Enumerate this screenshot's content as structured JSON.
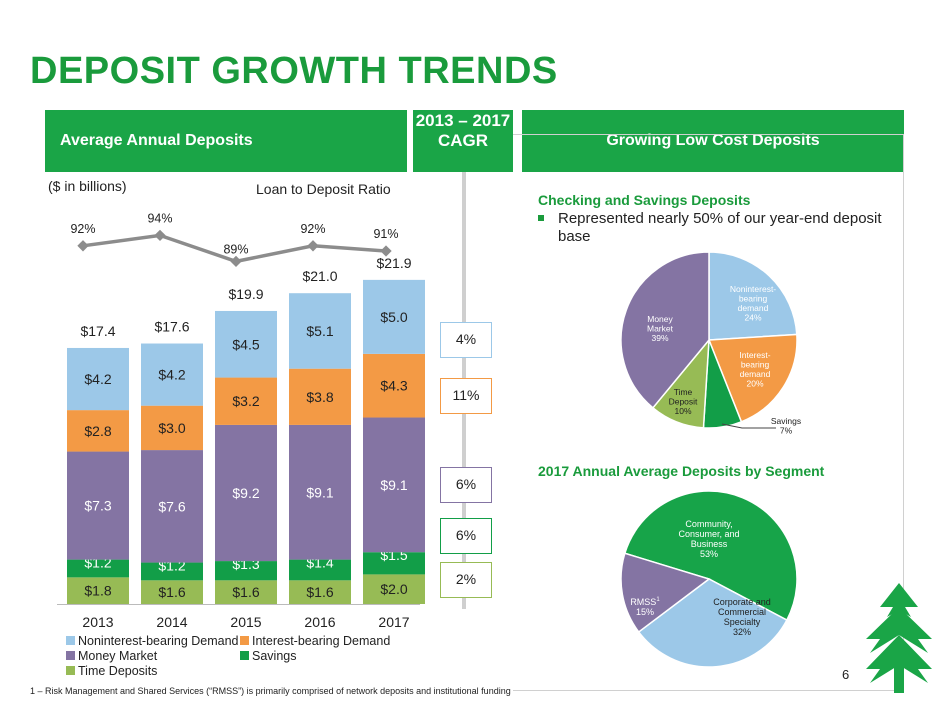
{
  "title": "DEPOSIT GROWTH TRENDS",
  "left_band": "Average Annual Deposits",
  "cagr_band": "2013 – 2017 CAGR",
  "right_band": "Growing Low Cost Deposits",
  "units_label": "($ in billions)",
  "ratio_label": "Loan to Deposit Ratio",
  "cagr_values": [
    "4%",
    "11%",
    "6%",
    "6%",
    "2%"
  ],
  "checking_heading": "Checking and Savings Deposits",
  "checking_bullet": "Represented nearly 50% of our year-end deposit base",
  "segment_heading": "2017 Annual Average Deposits by Segment",
  "footnote": "1 – Risk Management and Shared Services (“RMSS”) is primarily comprised of network deposits and institutional funding",
  "page_number": "6",
  "colors": {
    "brand_green": "#1a9b3c",
    "noninterest": "#9cc8e8",
    "interest": "#f39a45",
    "money_market": "#8474a3",
    "savings": "#129e48",
    "time_deposits": "#97bb55"
  },
  "chart_data": [
    {
      "type": "bar",
      "stacked": true,
      "title": "Average Annual Deposits",
      "ylabel": "($ in billions)",
      "categories": [
        "2013",
        "2014",
        "2015",
        "2016",
        "2017"
      ],
      "series": [
        {
          "name": "Time Deposits",
          "values": [
            "$1.8",
            "$1.6",
            "$1.6",
            "$1.6",
            "$2.0"
          ],
          "numeric": [
            1.8,
            1.6,
            1.6,
            1.6,
            2.0
          ]
        },
        {
          "name": "Savings",
          "values": [
            "$1.2",
            "$1.2",
            "$1.3",
            "$1.4",
            "$1.5"
          ],
          "numeric": [
            1.2,
            1.2,
            1.3,
            1.4,
            1.5
          ]
        },
        {
          "name": "Money Market",
          "values": [
            "$7.3",
            "$7.6",
            "$9.2",
            "$9.1",
            "$9.1"
          ],
          "numeric": [
            7.3,
            7.6,
            9.2,
            9.1,
            9.1
          ]
        },
        {
          "name": "Interest-bearing Demand",
          "values": [
            "$2.8",
            "$3.0",
            "$3.2",
            "$3.8",
            "$4.3"
          ],
          "numeric": [
            2.8,
            3.0,
            3.2,
            3.8,
            4.3
          ]
        },
        {
          "name": "Noninterest-bearing Demand",
          "values": [
            "$4.2",
            "$4.2",
            "$4.5",
            "$5.1",
            "$5.0"
          ],
          "numeric": [
            4.2,
            4.2,
            4.5,
            5.1,
            5.0
          ]
        }
      ],
      "totals": [
        "$17.4",
        "$17.6",
        "$19.9",
        "$21.0",
        "$21.9"
      ],
      "legend": [
        "Noninterest-bearing Demand",
        "Interest-bearing Demand",
        "Money Market",
        "Savings",
        "Time Deposits"
      ],
      "legend_position": "bottom"
    },
    {
      "type": "line",
      "title": "Loan to Deposit Ratio",
      "categories": [
        "2013",
        "2014",
        "2015",
        "2016",
        "2017"
      ],
      "values": [
        92,
        94,
        89,
        92,
        91
      ],
      "labels": [
        "92%",
        "94%",
        "89%",
        "92%",
        "91%"
      ]
    },
    {
      "type": "pie",
      "title": "Checking and Savings Deposits",
      "slices": [
        {
          "label": "Noninterest-bearing demand",
          "value": 24,
          "text": "24%"
        },
        {
          "label": "Interest-bearing demand",
          "value": 20,
          "text": "20%"
        },
        {
          "label": "Savings",
          "value": 7,
          "text": "7%"
        },
        {
          "label": "Time Deposit",
          "value": 10,
          "text": "10%"
        },
        {
          "label": "Money Market",
          "value": 39,
          "text": "39%"
        }
      ]
    },
    {
      "type": "pie",
      "title": "2017 Annual Average Deposits by Segment",
      "slices": [
        {
          "label": "Community, Consumer, and Business",
          "value": 53,
          "text": "53%"
        },
        {
          "label": "Corporate and Commercial Specialty",
          "value": 32,
          "text": "32%"
        },
        {
          "label": "RMSS",
          "sup": "1",
          "value": 15,
          "text": "15%"
        }
      ]
    }
  ]
}
